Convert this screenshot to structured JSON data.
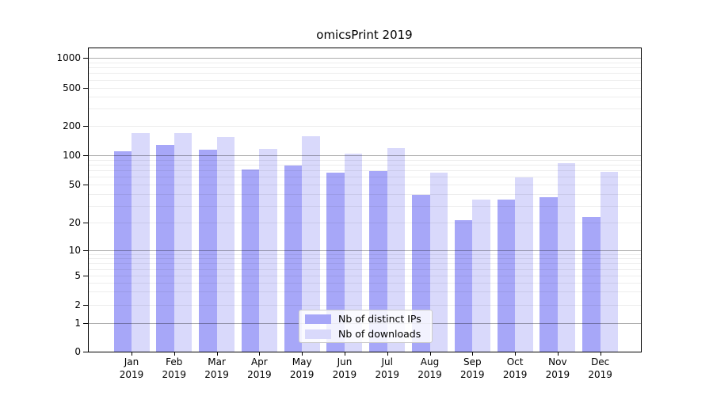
{
  "chart_data": {
    "type": "bar",
    "title": "omicsPrint 2019",
    "categories": [
      "Jan",
      "Feb",
      "Mar",
      "Apr",
      "May",
      "Jun",
      "Jul",
      "Aug",
      "Sep",
      "Oct",
      "Nov",
      "Dec"
    ],
    "year_label": "2019",
    "series": [
      {
        "name": "Nb of distinct IPs",
        "color": "#a7a7f8",
        "values": [
          110,
          126,
          113,
          71,
          78,
          66,
          69,
          39,
          21,
          35,
          37,
          23
        ]
      },
      {
        "name": "Nb of downloads",
        "color": "#d9d9fb",
        "values": [
          167,
          168,
          152,
          115,
          155,
          104,
          118,
          66,
          35,
          59,
          83,
          68
        ]
      }
    ],
    "xlabel": "",
    "ylabel": "",
    "yscale": "symlog",
    "ylim": [
      0,
      1270
    ],
    "y_ticks": [
      0,
      1,
      2,
      5,
      10,
      20,
      50,
      100,
      200,
      500,
      1000
    ],
    "grid": "horizontal major and minor gridlines",
    "legend_position": "lower center inside plot"
  }
}
